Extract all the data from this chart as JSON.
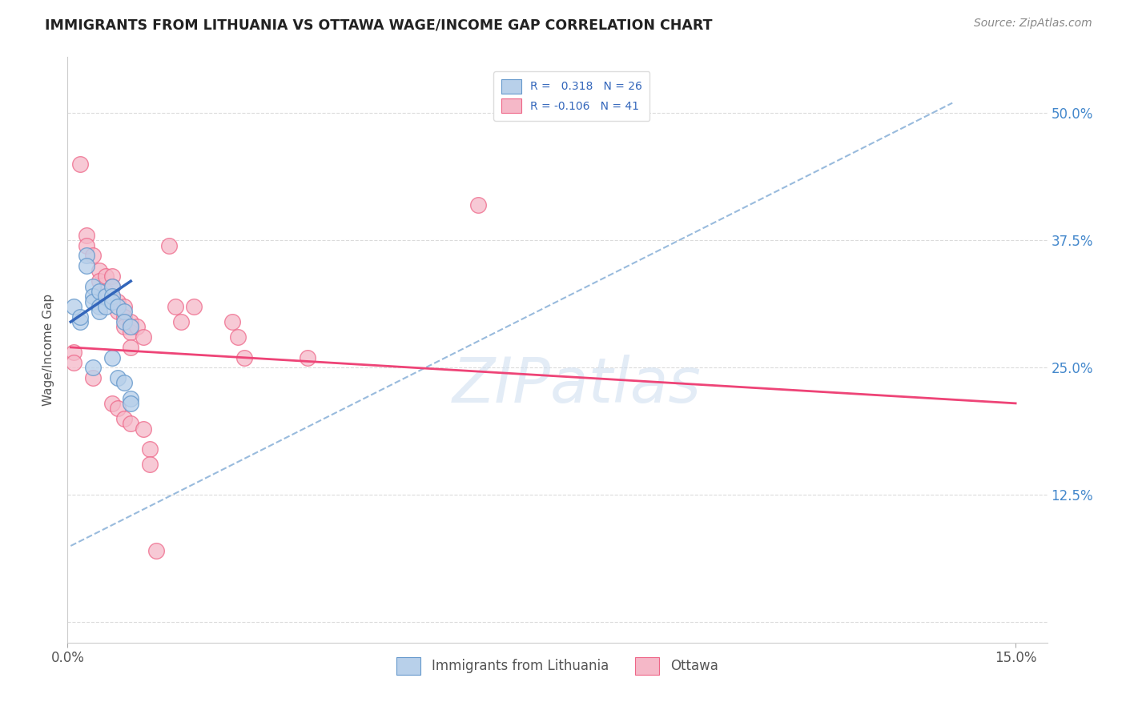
{
  "title": "IMMIGRANTS FROM LITHUANIA VS OTTAWA WAGE/INCOME GAP CORRELATION CHART",
  "source": "Source: ZipAtlas.com",
  "ylabel_label": "Wage/Income Gap",
  "legend_labels": [
    "Immigrants from Lithuania",
    "Ottawa"
  ],
  "R_blue": 0.318,
  "N_blue": 26,
  "R_pink": -0.106,
  "N_pink": 41,
  "blue_fill": "#b8d0ea",
  "pink_fill": "#f5b8c8",
  "blue_edge": "#6699cc",
  "pink_edge": "#ee6688",
  "blue_line_color": "#3366bb",
  "pink_line_color": "#ee4477",
  "dashed_line_color": "#99bbdd",
  "watermark": "ZIPatlas",
  "blue_scatter": [
    [
      0.001,
      0.31
    ],
    [
      0.002,
      0.295
    ],
    [
      0.002,
      0.3
    ],
    [
      0.003,
      0.36
    ],
    [
      0.003,
      0.35
    ],
    [
      0.004,
      0.33
    ],
    [
      0.004,
      0.32
    ],
    [
      0.004,
      0.315
    ],
    [
      0.005,
      0.325
    ],
    [
      0.005,
      0.31
    ],
    [
      0.005,
      0.305
    ],
    [
      0.006,
      0.32
    ],
    [
      0.006,
      0.31
    ],
    [
      0.007,
      0.33
    ],
    [
      0.007,
      0.32
    ],
    [
      0.007,
      0.315
    ],
    [
      0.008,
      0.31
    ],
    [
      0.009,
      0.305
    ],
    [
      0.009,
      0.295
    ],
    [
      0.01,
      0.29
    ],
    [
      0.004,
      0.25
    ],
    [
      0.007,
      0.26
    ],
    [
      0.008,
      0.24
    ],
    [
      0.009,
      0.235
    ],
    [
      0.01,
      0.22
    ],
    [
      0.01,
      0.215
    ]
  ],
  "pink_scatter": [
    [
      0.002,
      0.45
    ],
    [
      0.003,
      0.38
    ],
    [
      0.003,
      0.37
    ],
    [
      0.004,
      0.36
    ],
    [
      0.005,
      0.345
    ],
    [
      0.005,
      0.335
    ],
    [
      0.006,
      0.34
    ],
    [
      0.006,
      0.325
    ],
    [
      0.007,
      0.34
    ],
    [
      0.007,
      0.33
    ],
    [
      0.007,
      0.32
    ],
    [
      0.008,
      0.315
    ],
    [
      0.008,
      0.305
    ],
    [
      0.009,
      0.31
    ],
    [
      0.009,
      0.3
    ],
    [
      0.009,
      0.29
    ],
    [
      0.01,
      0.295
    ],
    [
      0.01,
      0.285
    ],
    [
      0.01,
      0.27
    ],
    [
      0.011,
      0.29
    ],
    [
      0.012,
      0.28
    ],
    [
      0.016,
      0.37
    ],
    [
      0.017,
      0.31
    ],
    [
      0.018,
      0.295
    ],
    [
      0.02,
      0.31
    ],
    [
      0.026,
      0.295
    ],
    [
      0.027,
      0.28
    ],
    [
      0.028,
      0.26
    ],
    [
      0.038,
      0.26
    ],
    [
      0.065,
      0.41
    ],
    [
      0.001,
      0.265
    ],
    [
      0.001,
      0.255
    ],
    [
      0.004,
      0.24
    ],
    [
      0.007,
      0.215
    ],
    [
      0.008,
      0.21
    ],
    [
      0.009,
      0.2
    ],
    [
      0.01,
      0.195
    ],
    [
      0.012,
      0.19
    ],
    [
      0.013,
      0.17
    ],
    [
      0.013,
      0.155
    ],
    [
      0.014,
      0.07
    ]
  ],
  "blue_trendline": [
    [
      0.0005,
      0.295
    ],
    [
      0.01,
      0.335
    ]
  ],
  "pink_trendline": [
    [
      0.0005,
      0.27
    ],
    [
      0.15,
      0.215
    ]
  ],
  "dashed_trendline": [
    [
      0.0005,
      0.075
    ],
    [
      0.14,
      0.51
    ]
  ],
  "xlim": [
    0.0,
    0.155
  ],
  "ylim": [
    -0.02,
    0.555
  ],
  "ytick_positions": [
    0.0,
    0.125,
    0.25,
    0.375,
    0.5
  ],
  "ytick_labels_right": [
    "",
    "12.5%",
    "25.0%",
    "37.5%",
    "50.0%"
  ],
  "xtick_positions": [
    0.0,
    0.15
  ],
  "xtick_labels": [
    "0.0%",
    "15.0%"
  ],
  "grid_color": "#cccccc",
  "scatter_size": 200
}
